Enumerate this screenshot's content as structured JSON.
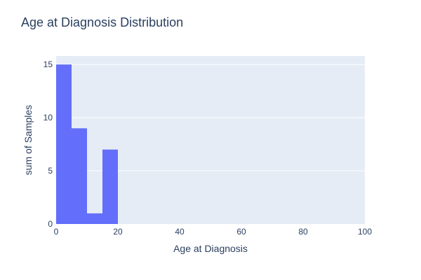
{
  "chart_data": {
    "type": "bar",
    "title": "Age at Diagnosis Distribution",
    "xlabel": "Age at Diagnosis",
    "ylabel": "sum of Samples",
    "xlim": [
      0,
      100
    ],
    "ylim": [
      0,
      15.8
    ],
    "x_ticks": [
      0,
      20,
      40,
      60,
      80,
      100
    ],
    "y_ticks": [
      0,
      5,
      10,
      15
    ],
    "bin_width": 5,
    "bins": [
      {
        "x0": 0,
        "x1": 5,
        "value": 15
      },
      {
        "x0": 5,
        "x1": 10,
        "value": 9
      },
      {
        "x0": 10,
        "x1": 15,
        "value": 1
      },
      {
        "x0": 15,
        "x1": 20,
        "value": 7
      }
    ],
    "grid": true,
    "legend": "none"
  },
  "colors": {
    "bar": "#636efa",
    "plot_background": "#e5ecf6",
    "grid": "#ffffff",
    "text": "#2a3f5f"
  }
}
